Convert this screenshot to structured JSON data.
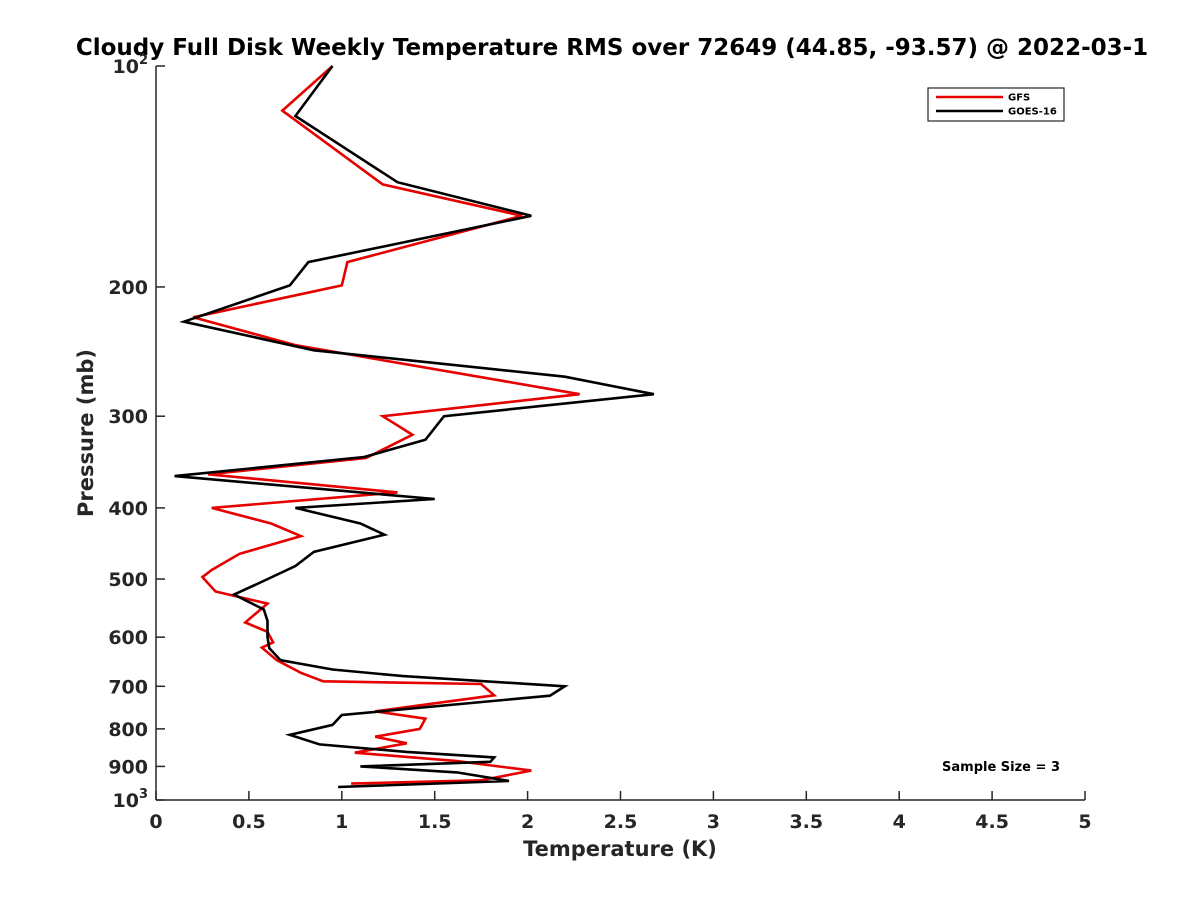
{
  "chart_data": {
    "type": "line",
    "title": "Cloudy Full Disk Weekly Temperature RMS over 72649 (44.85, -93.57) @ 2022-03-1",
    "xlabel": "Temperature (K)",
    "ylabel": "Pressure (mb)",
    "xlim": [
      0,
      5
    ],
    "ylim": [
      100,
      1000
    ],
    "y_scale": "log",
    "y_reversed": true,
    "xticks": [
      0,
      0.5,
      1,
      1.5,
      2,
      2.5,
      3,
      3.5,
      4,
      4.5,
      5
    ],
    "xtick_labels": [
      "0",
      "0.5",
      "1",
      "1.5",
      "2",
      "2.5",
      "3",
      "3.5",
      "4",
      "4.5",
      "5"
    ],
    "yticks": [
      {
        "value": 100,
        "base": "10",
        "exp": "2"
      },
      {
        "value": 200,
        "label": "200"
      },
      {
        "value": 300,
        "label": "300"
      },
      {
        "value": 400,
        "label": "400"
      },
      {
        "value": 500,
        "label": "500"
      },
      {
        "value": 600,
        "label": "600"
      },
      {
        "value": 700,
        "label": "700"
      },
      {
        "value": 800,
        "label": "800"
      },
      {
        "value": 900,
        "label": "900"
      },
      {
        "value": 1000,
        "base": "10",
        "exp": "3"
      }
    ],
    "legend_position": "top-right",
    "grid": false,
    "annotation": "Sample Size = 3",
    "series": [
      {
        "name": "GFS",
        "color": "#e60000",
        "points": [
          [
            0.95,
            100
          ],
          [
            0.68,
            115
          ],
          [
            1.22,
            145
          ],
          [
            1.97,
            160
          ],
          [
            1.03,
            185
          ],
          [
            1.0,
            199
          ],
          [
            0.2,
            220
          ],
          [
            0.75,
            240
          ],
          [
            2.28,
            280
          ],
          [
            1.22,
            300
          ],
          [
            1.38,
            318
          ],
          [
            1.13,
            342
          ],
          [
            0.28,
            360
          ],
          [
            1.3,
            381
          ],
          [
            0.3,
            400
          ],
          [
            0.62,
            420
          ],
          [
            0.78,
            437
          ],
          [
            0.45,
            462
          ],
          [
            0.3,
            486
          ],
          [
            0.25,
            497
          ],
          [
            0.32,
            520
          ],
          [
            0.6,
            540
          ],
          [
            0.48,
            573
          ],
          [
            0.6,
            590
          ],
          [
            0.63,
            610
          ],
          [
            0.57,
            620
          ],
          [
            0.65,
            645
          ],
          [
            0.78,
            671
          ],
          [
            0.9,
            689
          ],
          [
            1.75,
            695
          ],
          [
            1.82,
            720
          ],
          [
            1.18,
            757
          ],
          [
            1.45,
            775
          ],
          [
            1.42,
            800
          ],
          [
            1.18,
            820
          ],
          [
            1.35,
            837
          ],
          [
            1.07,
            862
          ],
          [
            1.62,
            885
          ],
          [
            2.02,
            912
          ],
          [
            1.75,
            940
          ],
          [
            1.05,
            950
          ]
        ]
      },
      {
        "name": "GOES-16",
        "color": "#000000",
        "points": [
          [
            0.95,
            100
          ],
          [
            0.75,
            117
          ],
          [
            1.3,
            144
          ],
          [
            2.02,
            160
          ],
          [
            0.82,
            185
          ],
          [
            0.72,
            199
          ],
          [
            0.15,
            223
          ],
          [
            0.85,
            244
          ],
          [
            2.2,
            265
          ],
          [
            2.68,
            280
          ],
          [
            1.55,
            300
          ],
          [
            1.45,
            323
          ],
          [
            1.12,
            341
          ],
          [
            0.1,
            362
          ],
          [
            1.5,
            389
          ],
          [
            0.75,
            400
          ],
          [
            1.1,
            420
          ],
          [
            1.23,
            435
          ],
          [
            0.85,
            459
          ],
          [
            0.75,
            480
          ],
          [
            0.55,
            507
          ],
          [
            0.42,
            525
          ],
          [
            0.58,
            550
          ],
          [
            0.6,
            570
          ],
          [
            0.6,
            600
          ],
          [
            0.61,
            621
          ],
          [
            0.67,
            645
          ],
          [
            0.95,
            664
          ],
          [
            1.33,
            678
          ],
          [
            2.2,
            700
          ],
          [
            2.12,
            721
          ],
          [
            1.0,
            766
          ],
          [
            0.95,
            790
          ],
          [
            0.72,
            815
          ],
          [
            0.88,
            840
          ],
          [
            1.35,
            860
          ],
          [
            1.82,
            875
          ],
          [
            1.8,
            887
          ],
          [
            1.1,
            900
          ],
          [
            1.62,
            917
          ],
          [
            1.9,
            942
          ],
          [
            0.98,
            960
          ]
        ]
      }
    ]
  }
}
